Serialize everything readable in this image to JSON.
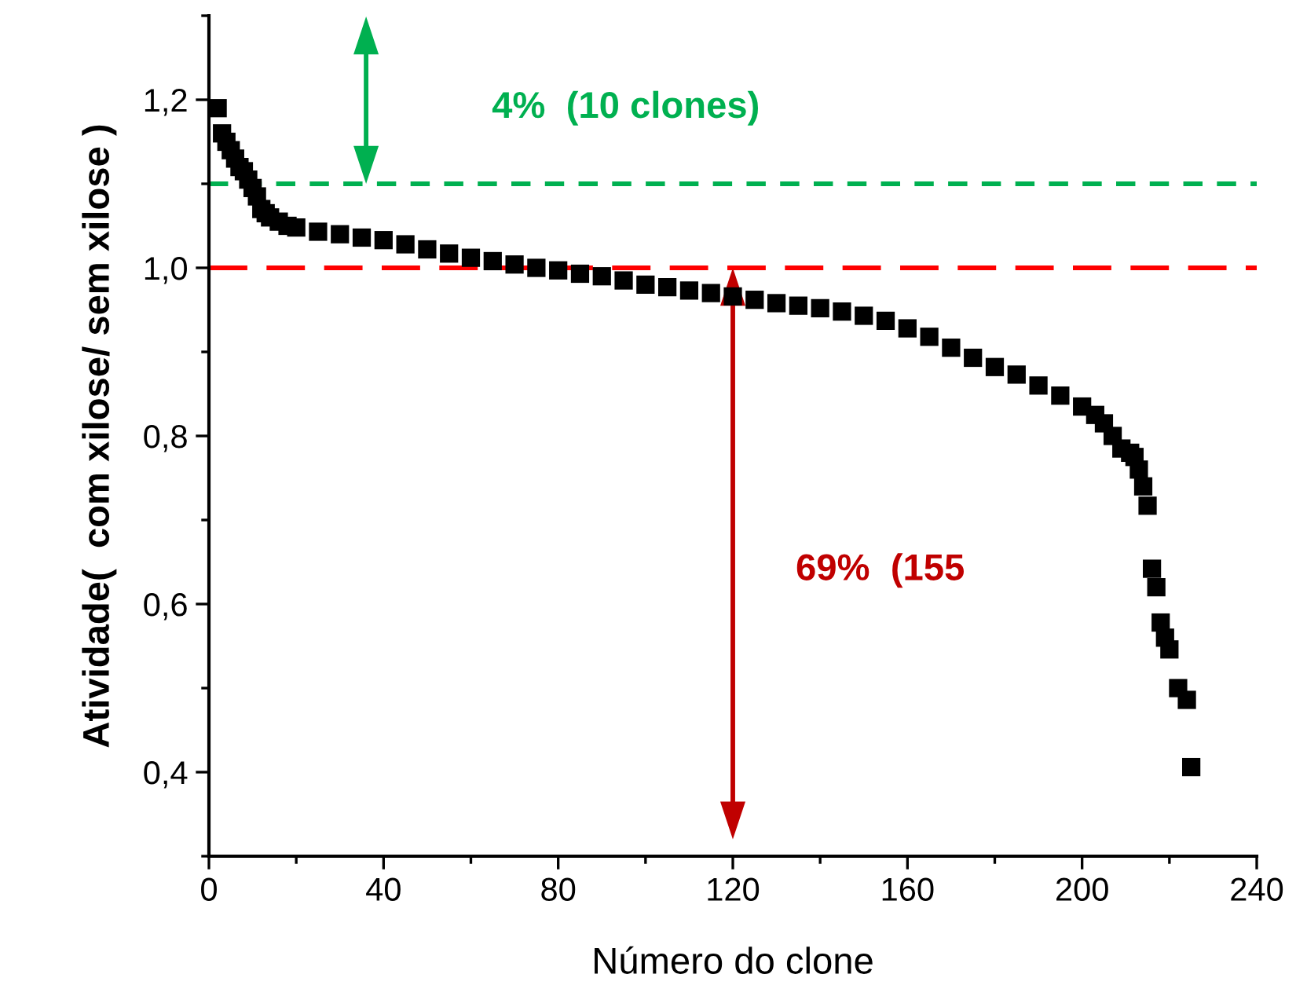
{
  "chart_data": {
    "type": "scatter",
    "xlabel": "Número do clone",
    "ylabel": "Atividade(  com xilose/ sem xilose )",
    "x": [
      2,
      3,
      4,
      5,
      6,
      7,
      8,
      9,
      10,
      11,
      12,
      13,
      14,
      16,
      18,
      20,
      25,
      30,
      35,
      40,
      45,
      50,
      55,
      60,
      65,
      70,
      75,
      80,
      85,
      90,
      95,
      100,
      105,
      110,
      115,
      120,
      125,
      130,
      135,
      140,
      145,
      150,
      155,
      160,
      165,
      170,
      175,
      180,
      185,
      190,
      195,
      200,
      203,
      205,
      207,
      209,
      211,
      212,
      213,
      214,
      215,
      216,
      217,
      218,
      219,
      220,
      222,
      224,
      225
    ],
    "values": [
      1.19,
      1.16,
      1.15,
      1.14,
      1.13,
      1.12,
      1.115,
      1.105,
      1.095,
      1.085,
      1.07,
      1.065,
      1.06,
      1.055,
      1.05,
      1.048,
      1.043,
      1.04,
      1.036,
      1.033,
      1.028,
      1.022,
      1.017,
      1.012,
      1.008,
      1.004,
      1.0,
      0.997,
      0.993,
      0.99,
      0.985,
      0.98,
      0.977,
      0.973,
      0.97,
      0.966,
      0.962,
      0.958,
      0.955,
      0.952,
      0.948,
      0.943,
      0.937,
      0.928,
      0.918,
      0.905,
      0.893,
      0.882,
      0.873,
      0.86,
      0.848,
      0.835,
      0.825,
      0.815,
      0.8,
      0.785,
      0.78,
      0.775,
      0.76,
      0.74,
      0.717,
      0.642,
      0.62,
      0.578,
      0.56,
      0.546,
      0.5,
      0.486,
      0.406
    ],
    "color": "#000000",
    "marker": "square",
    "xlim": [
      0,
      240
    ],
    "xticks": [
      0,
      40,
      80,
      120,
      160,
      200,
      240
    ],
    "ylim": [
      0.3,
      1.3
    ],
    "yticks": [
      {
        "value": 0.4,
        "label": "0,4"
      },
      {
        "value": 0.6,
        "label": "0,6"
      },
      {
        "value": 0.8,
        "label": "0,8"
      },
      {
        "value": 1.0,
        "label": "1,0"
      },
      {
        "value": 1.2,
        "label": "1,2"
      }
    ],
    "grid": false,
    "ref_lines": [
      {
        "axis": "y",
        "value": 1.1,
        "color": "#00b050",
        "line_style": "dashed"
      },
      {
        "axis": "y",
        "value": 1.0,
        "color": "#ff0000",
        "line_style": "dashed"
      }
    ],
    "annotations": [
      "4%  (10 clones)",
      "69%  (155"
    ]
  }
}
